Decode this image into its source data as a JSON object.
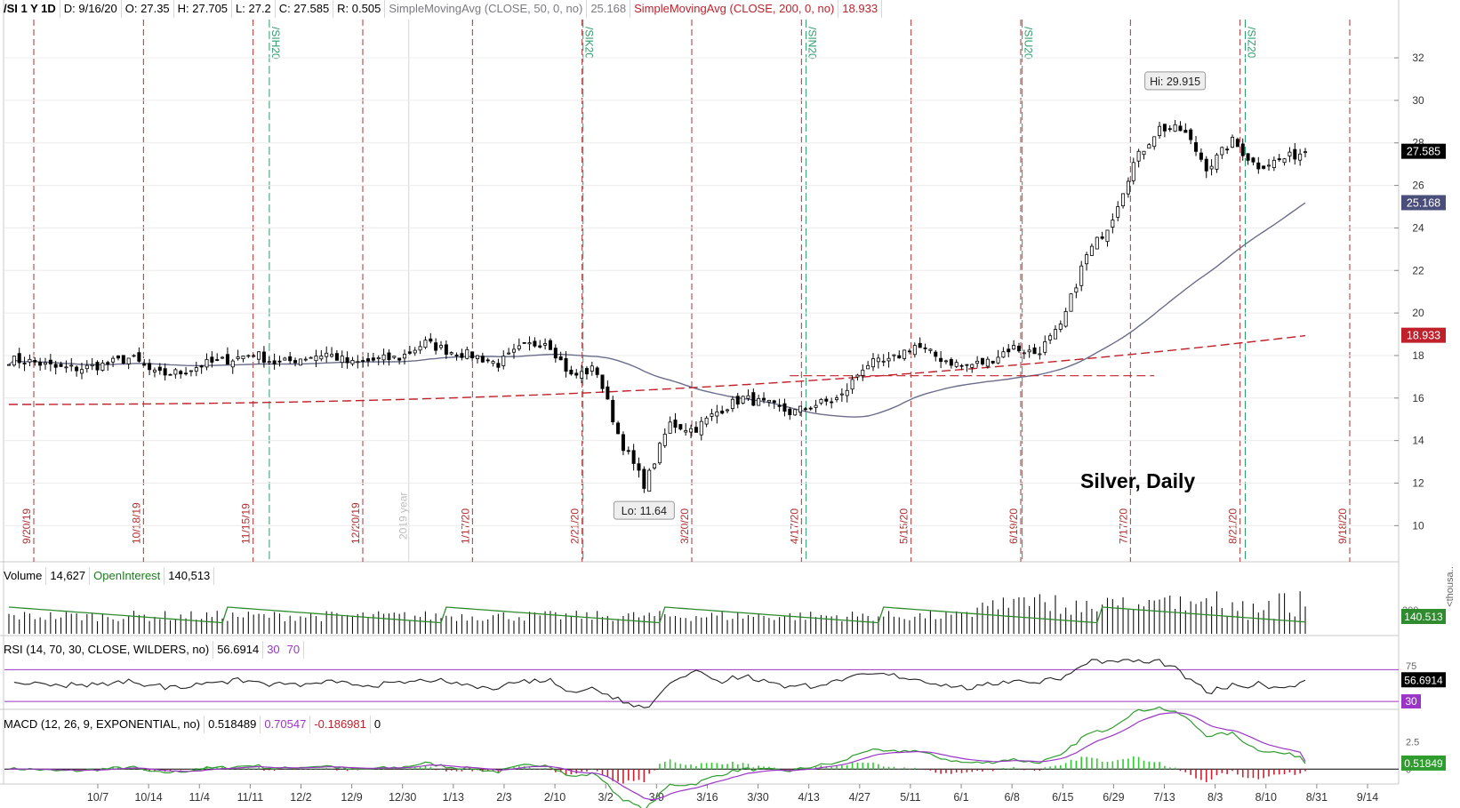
{
  "header": {
    "symbol": "/SI 1 Y 1D",
    "date": "D: 9/16/20",
    "open": "O: 27.35",
    "high": "H: 27.705",
    "low": "L: 27.2",
    "close": "C: 27.585",
    "range": "R: 0.505",
    "sma50_label": "SimpleMovingAvg (CLOSE, 50, 0, no)",
    "sma50_value": "25.168",
    "sma200_label": "SimpleMovingAvg (CLOSE, 200, 0, no)",
    "sma200_value": "18.933"
  },
  "volume_header": {
    "volume_label": "Volume",
    "volume_value": "14,627",
    "oi_label": "OpenInterest",
    "oi_value": "140,513"
  },
  "rsi_header": {
    "label": "RSI (14, 70, 30, CLOSE, WILDERS, no)",
    "value": "56.6914",
    "lower": "30",
    "upper": "70"
  },
  "macd_header": {
    "label": "MACD (12, 26, 9, EXPONENTIAL, no)",
    "value": "0.518489",
    "avg": "0.70547",
    "diff": "-0.186981",
    "zero": "0"
  },
  "colors": {
    "candle": "#000000",
    "sma50": "#6a6e8a",
    "sma200": "#c0202a",
    "expiry_line": "#b03030",
    "contract_line": "#2a9d6a",
    "open_interest": "#2e8b2e",
    "rsi": "#222222",
    "rsi_band": "#9a35c6",
    "macd": "#2e9d2e",
    "macd_avg": "#9a35c6",
    "hist_pos": "#2ecc2e",
    "hist_neg": "#cc2030"
  },
  "chart_data": {
    "type": "candlestick",
    "title": "Silver, Daily",
    "y_axis_ticks": [
      10,
      12,
      14,
      16,
      18,
      20,
      22,
      24,
      26,
      28,
      30,
      32
    ],
    "ylim": [
      8.3,
      33.8
    ],
    "x_axis_ticks": [
      "10/7",
      "10/14",
      "11/4",
      "11/11",
      "12/2",
      "12/9",
      "12/30",
      "1/13",
      "2/3",
      "2/10",
      "3/2",
      "3/9",
      "3/16",
      "3/30",
      "4/13",
      "4/27",
      "5/11",
      "6/1",
      "6/8",
      "6/15",
      "6/29",
      "7/13",
      "8/3",
      "8/10",
      "8/31",
      "9/14"
    ],
    "year_marker": "2019 year",
    "expiration_dates": [
      "9/20/19",
      "10/18/19",
      "11/15/19",
      "12/20/19",
      "1/17/20",
      "2/21/20",
      "3/20/20",
      "4/17/20",
      "5/15/20",
      "6/19/20",
      "7/17/20",
      "8/21/20",
      "9/18/20"
    ],
    "contract_rolls": [
      "/SIH20",
      "/SIK20",
      "/SIN20",
      "/SIU20",
      "/SIZ20"
    ],
    "annotations": [
      {
        "text": "Hi: 29.915",
        "value": 29.915
      },
      {
        "text": "Lo: 11.64",
        "value": 11.64
      }
    ],
    "price_badges": [
      {
        "text": "27.585",
        "value": 27.585
      },
      {
        "text": "25.168",
        "value": 25.168
      },
      {
        "text": "18.933",
        "value": 18.933
      }
    ],
    "close_anchors": [
      17.8,
      17.7,
      17.4,
      17.4,
      17.6,
      17.9,
      17.1,
      17.2,
      17.6,
      17.8,
      18.1,
      17.6,
      17.9,
      18.1,
      17.6,
      17.8,
      17.9,
      18.6,
      18.2,
      18.0,
      17.6,
      18.4,
      18.7,
      17.0,
      17.4,
      14.0,
      11.9,
      14.8,
      14.5,
      15.4,
      16.0,
      15.7,
      15.3,
      15.7,
      16.0,
      17.6,
      17.7,
      18.5,
      17.9,
      17.5,
      17.7,
      18.4,
      18.1,
      19.3,
      22.6,
      24.2,
      27.1,
      28.7,
      28.6,
      26.8,
      28.1,
      26.9,
      27.2,
      27.6
    ],
    "high": 29.915,
    "low": 11.64,
    "last": 27.585,
    "sma50_last": 25.168,
    "sma200_last": 18.933,
    "rsi": {
      "last": 56.6914,
      "lower": 30,
      "upper": 70,
      "ticks": [
        30,
        75
      ]
    },
    "macd": {
      "value": 0.518489,
      "avg": 0.70547,
      "diff": -0.186981,
      "ticks": [
        0,
        2.5
      ]
    },
    "volume": {
      "last": 14627,
      "open_interest": 140513,
      "axis_label": "<thousa..",
      "oi_badge": "140.513",
      "vol_tick": "200"
    }
  }
}
